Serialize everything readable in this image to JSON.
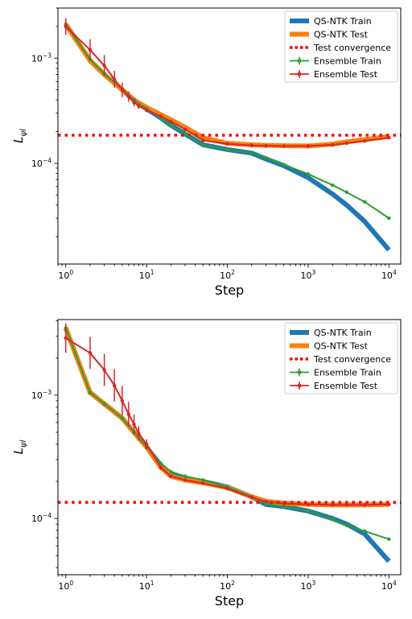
{
  "chart_data": [
    {
      "type": "line",
      "xlabel": "Step",
      "ylabel": "L",
      "ylabel_sub": "ψl",
      "xscale": "log",
      "yscale": "log",
      "xlim": [
        0.8,
        14000
      ],
      "ylim": [
        1.1e-05,
        0.003
      ],
      "x_ticks": [
        {
          "v": 1,
          "base": "10",
          "exp": "0"
        },
        {
          "v": 10,
          "base": "10",
          "exp": "1"
        },
        {
          "v": 100,
          "base": "10",
          "exp": "2"
        },
        {
          "v": 1000,
          "base": "10",
          "exp": "3"
        },
        {
          "v": 10000,
          "base": "10",
          "exp": "4"
        }
      ],
      "y_ticks": [
        {
          "v": 0.0001,
          "base": "10",
          "exp": "−4"
        },
        {
          "v": 0.001,
          "base": "10",
          "exp": "−3"
        }
      ],
      "grid": false,
      "legend_position": "top-right",
      "series": [
        {
          "name": "QS-NTK Train",
          "color": "#1f77b4",
          "style": "thick",
          "x": [
            1,
            2,
            3,
            5,
            7,
            10,
            15,
            20,
            30,
            50,
            100,
            200,
            300,
            500,
            1000,
            2000,
            3000,
            5000,
            10000
          ],
          "y": [
            0.0021,
            0.00095,
            0.0007,
            0.0005,
            0.0004,
            0.00033,
            0.00027,
            0.00023,
            0.00019,
            0.00015,
            0.000135,
            0.000125,
            0.00011,
            9.5e-05,
            7.3e-05,
            5.1e-05,
            4e-05,
            2.8e-05,
            1.5e-05
          ]
        },
        {
          "name": "QS-NTK Test",
          "color": "#ff7f0e",
          "style": "thick",
          "x": [
            1,
            2,
            3,
            5,
            7,
            10,
            15,
            20,
            30,
            50,
            100,
            200,
            300,
            500,
            1000,
            2000,
            3000,
            5000,
            10000
          ],
          "y": [
            0.0021,
            0.00095,
            0.0007,
            0.0005,
            0.0004,
            0.00034,
            0.00029,
            0.00026,
            0.00022,
            0.000175,
            0.000155,
            0.00015,
            0.000148,
            0.000147,
            0.000146,
            0.000152,
            0.00016,
            0.000168,
            0.00018
          ]
        },
        {
          "name": "Test convergence",
          "color": "#ff0000",
          "style": "dotted",
          "hline": 0.000185
        },
        {
          "name": "Ensemble Train",
          "color": "#2ca02c",
          "style": "errorbar",
          "x": [
            1,
            2,
            3,
            5,
            7,
            10,
            15,
            20,
            30,
            50,
            100,
            200,
            300,
            500,
            1000,
            2000,
            3000,
            5000,
            10000
          ],
          "y": [
            0.0021,
            0.00097,
            0.00071,
            0.00051,
            0.0004,
            0.00033,
            0.00027,
            0.00023,
            0.00019,
            0.00015,
            0.000135,
            0.000126,
            0.000113,
            9.7e-05,
            7.9e-05,
            6.2e-05,
            5.3e-05,
            4.3e-05,
            3e-05
          ]
        },
        {
          "name": "Ensemble Test",
          "color": "#d62728",
          "style": "errorbar",
          "x": [
            1,
            2,
            3,
            4,
            5,
            6,
            7,
            8,
            10,
            15,
            20,
            30,
            50,
            100,
            200,
            300,
            500,
            1000,
            2000,
            3000,
            5000,
            10000
          ],
          "y": [
            0.002,
            0.0012,
            0.00085,
            0.00063,
            0.0005,
            0.00043,
            0.00038,
            0.00035,
            0.00032,
            0.00028,
            0.00025,
            0.00021,
            0.000165,
            0.000153,
            0.000148,
            0.000147,
            0.000146,
            0.000146,
            0.00015,
            0.000155,
            0.000163,
            0.000175
          ],
          "err": [
            0.08,
            0.1,
            0.1,
            0.08,
            0.07,
            0.05,
            0.04,
            0.03,
            0.02,
            0.01,
            0.01,
            0.01,
            0.01,
            0.01,
            0.01,
            0.01,
            0.01,
            0.01,
            0.01,
            0.01,
            0.01,
            0.01
          ]
        }
      ]
    },
    {
      "type": "line",
      "xlabel": "Step",
      "ylabel": "L",
      "ylabel_sub": "ψl",
      "xscale": "log",
      "yscale": "log",
      "xlim": [
        0.8,
        14000
      ],
      "ylim": [
        3.5e-05,
        0.0041
      ],
      "x_ticks": [
        {
          "v": 1,
          "base": "10",
          "exp": "0"
        },
        {
          "v": 10,
          "base": "10",
          "exp": "1"
        },
        {
          "v": 100,
          "base": "10",
          "exp": "2"
        },
        {
          "v": 1000,
          "base": "10",
          "exp": "3"
        },
        {
          "v": 10000,
          "base": "10",
          "exp": "4"
        }
      ],
      "y_ticks": [
        {
          "v": 0.0001,
          "base": "10",
          "exp": "−4"
        },
        {
          "v": 0.001,
          "base": "10",
          "exp": "−3"
        }
      ],
      "grid": false,
      "legend_position": "top-right",
      "series": [
        {
          "name": "QS-NTK Train",
          "color": "#1f77b4",
          "style": "thick",
          "x": [
            1,
            2,
            3,
            5,
            7,
            10,
            15,
            20,
            30,
            50,
            100,
            200,
            300,
            500,
            1000,
            2000,
            3000,
            5000,
            10000
          ],
          "y": [
            0.0035,
            0.00105,
            0.00085,
            0.00065,
            0.0005,
            0.00038,
            0.00027,
            0.00023,
            0.00021,
            0.0002,
            0.00018,
            0.00015,
            0.00013,
            0.000125,
            0.000115,
            0.0001,
            9e-05,
            7.5e-05,
            4.5e-05
          ]
        },
        {
          "name": "QS-NTK Test",
          "color": "#ff7f0e",
          "style": "thick",
          "x": [
            1,
            2,
            3,
            5,
            7,
            10,
            15,
            20,
            30,
            50,
            100,
            200,
            300,
            500,
            1000,
            2000,
            3000,
            5000,
            10000
          ],
          "y": [
            0.0035,
            0.00105,
            0.00085,
            0.00065,
            0.0005,
            0.00038,
            0.00026,
            0.00022,
            0.000205,
            0.000195,
            0.000178,
            0.00015,
            0.000138,
            0.000133,
            0.00013,
            0.000129,
            0.000129,
            0.000129,
            0.00013
          ]
        },
        {
          "name": "Test convergence",
          "color": "#ff0000",
          "style": "dotted",
          "hline": 0.000135
        },
        {
          "name": "Ensemble Train",
          "color": "#2ca02c",
          "style": "errorbar",
          "x": [
            1,
            2,
            3,
            5,
            7,
            10,
            15,
            20,
            30,
            50,
            100,
            200,
            300,
            500,
            1000,
            2000,
            3000,
            5000,
            10000
          ],
          "y": [
            0.0035,
            0.00105,
            0.00085,
            0.00065,
            0.0005,
            0.00038,
            0.00028,
            0.00024,
            0.00022,
            0.000205,
            0.00018,
            0.00015,
            0.000132,
            0.000125,
            0.000115,
            9.8e-05,
            8.8e-05,
            7.9e-05,
            6.8e-05
          ]
        },
        {
          "name": "Ensemble Test",
          "color": "#d62728",
          "style": "errorbar",
          "x": [
            1,
            2,
            3,
            4,
            5,
            6,
            7,
            8,
            10,
            15,
            20,
            30,
            50,
            100,
            200,
            300,
            500,
            1000,
            2000,
            3000,
            5000,
            10000
          ],
          "y": [
            0.0029,
            0.0022,
            0.0016,
            0.0012,
            0.0009,
            0.0007,
            0.00058,
            0.00049,
            0.0004,
            0.00026,
            0.00022,
            0.000205,
            0.000193,
            0.000175,
            0.000148,
            0.000137,
            0.000132,
            0.00013,
            0.000129,
            0.000129,
            0.000129,
            0.00013
          ],
          "err": [
            0.12,
            0.13,
            0.13,
            0.13,
            0.12,
            0.1,
            0.08,
            0.06,
            0.04,
            0.02,
            0.01,
            0.01,
            0.01,
            0.01,
            0.01,
            0.01,
            0.01,
            0.01,
            0.01,
            0.01,
            0.01,
            0.01
          ]
        }
      ]
    }
  ]
}
